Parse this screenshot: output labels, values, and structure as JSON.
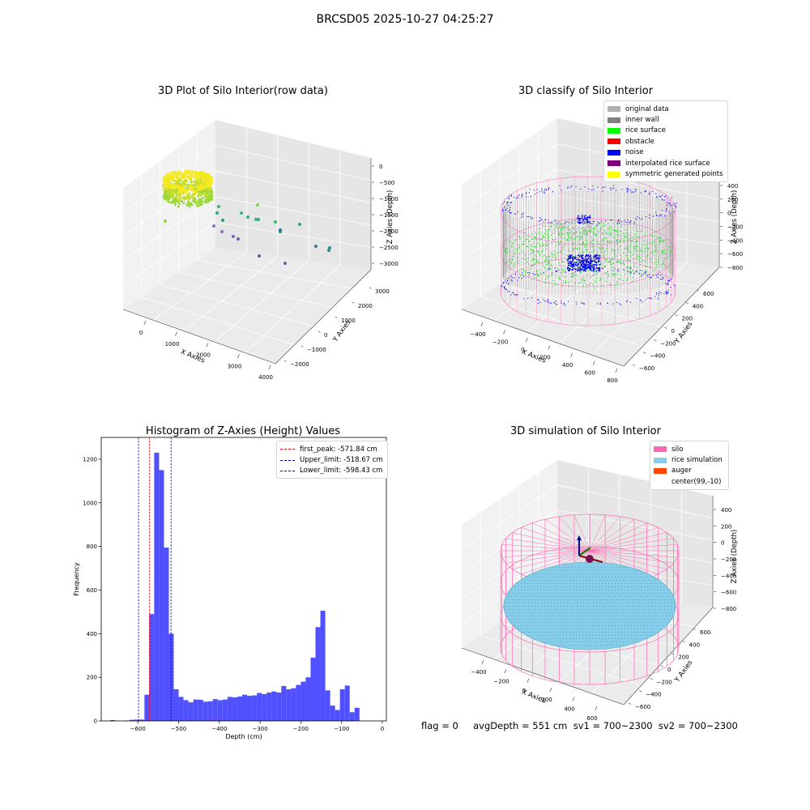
{
  "suptitle": "BRCSD05 2025-10-27 04:25:27",
  "status_text": "flag = 0     avgDepth = 551 cm  sv1 = 700~2300  sv2 = 700~2300",
  "colors": {
    "histogram_bar": "#5050ff",
    "first_peak_line": "#ff0000",
    "limit_line": "#0000aa",
    "silo": "#ff69b4",
    "rice_simulation": "#87ceeb",
    "auger": "#ff4500"
  },
  "chart_data": [
    {
      "id": "raw",
      "type": "scatter",
      "title": "3D Plot of Silo Interior(row data)",
      "xlabel": "X Axies",
      "ylabel": "Y Axies",
      "zlabel": "Z Axies (Depth)",
      "x_ticks": [
        "0",
        "1000",
        "2000",
        "3000",
        "4000"
      ],
      "y_ticks": [
        "−2000",
        "−1000",
        "0",
        "1000",
        "2000",
        "3000"
      ],
      "z_ticks": [
        "0",
        "−500",
        "−1000",
        "−1500",
        "−2000",
        "−2500",
        "−3000"
      ],
      "xlim": [
        -500,
        4000
      ],
      "ylim": [
        -2000,
        3000
      ],
      "zlim": [
        -3200,
        0
      ],
      "grid": true
    },
    {
      "id": "classify",
      "type": "scatter",
      "title": "3D classify of Silo Interior",
      "xlabel": "X Axies",
      "ylabel": "Y Axies",
      "zlabel": "Z Axies (Depth)",
      "x_ticks": [
        "−400",
        "−200",
        "0",
        "200",
        "400",
        "600",
        "800"
      ],
      "y_ticks": [
        "−600",
        "−400",
        "−200",
        "0",
        "200",
        "400",
        "600"
      ],
      "z_ticks": [
        "400",
        "200",
        "0",
        "−200",
        "−400",
        "−600",
        "−800"
      ],
      "legend": [
        {
          "label": "original data",
          "color": "#b0b0b0"
        },
        {
          "label": "inner wall",
          "color": "#808080"
        },
        {
          "label": "rice surface",
          "color": "#00ff00"
        },
        {
          "label": "obstacle",
          "color": "#ff0000"
        },
        {
          "label": "noise",
          "color": "#0000ff"
        },
        {
          "label": "interpolated rice surface",
          "color": "#800080"
        },
        {
          "label": "symmetric generated points",
          "color": "#ffff00"
        }
      ],
      "legend_position": "top-right",
      "grid": true
    },
    {
      "id": "histogram",
      "type": "bar",
      "title": "Histogram of Z-Axies (Height) Values",
      "xlabel": "Depth (cm)",
      "ylabel": "Frequency",
      "xlim": [
        -690,
        10
      ],
      "ylim": [
        0,
        1300
      ],
      "x_ticks": [
        -600,
        -500,
        -400,
        -300,
        -200,
        -100,
        0
      ],
      "y_ticks": [
        0,
        200,
        400,
        600,
        800,
        1000,
        1200
      ],
      "bin_start": -680,
      "bin_width": 12,
      "values": [
        0,
        4,
        1,
        0,
        2,
        5,
        6,
        6,
        120,
        490,
        1230,
        1150,
        795,
        400,
        145,
        110,
        95,
        85,
        98,
        97,
        88,
        90,
        100,
        95,
        98,
        110,
        108,
        112,
        120,
        115,
        117,
        128,
        123,
        130,
        135,
        130,
        160,
        145,
        150,
        165,
        180,
        200,
        290,
        430,
        505,
        140,
        70,
        50,
        145,
        162,
        40,
        60
      ],
      "vlines": [
        {
          "label": "first_peak: -571.84 cm",
          "x": -571.84,
          "color": "#ff0000"
        },
        {
          "label": "Upper_limit: -518.67 cm",
          "x": -518.67,
          "color": "#0000aa"
        },
        {
          "label": "Lower_limit: -598.43 cm",
          "x": -598.43,
          "color": "#0000aa"
        }
      ],
      "legend_position": "top-right",
      "grid": false
    },
    {
      "id": "simulation",
      "type": "scatter",
      "title": "3D simulation of Silo Interior",
      "xlabel": "X Axies",
      "ylabel": "Y Axies",
      "zlabel": "Z Axies (Depth)",
      "x_ticks": [
        "−400",
        "−200",
        "0",
        "200",
        "400",
        "600"
      ],
      "y_ticks": [
        "−600",
        "−400",
        "−200",
        "0",
        "200",
        "400",
        "600"
      ],
      "z_ticks": [
        "400",
        "200",
        "0",
        "−200",
        "−400",
        "−600",
        "−800"
      ],
      "legend": [
        {
          "label": "silo",
          "color": "#ff69b4"
        },
        {
          "label": "rice simulation",
          "color": "#87ceeb"
        },
        {
          "label": "auger",
          "color": "#ff4500"
        },
        {
          "label": "center(99,-10)",
          "color": ""
        }
      ],
      "legend_position": "top-right",
      "grid": true
    }
  ]
}
